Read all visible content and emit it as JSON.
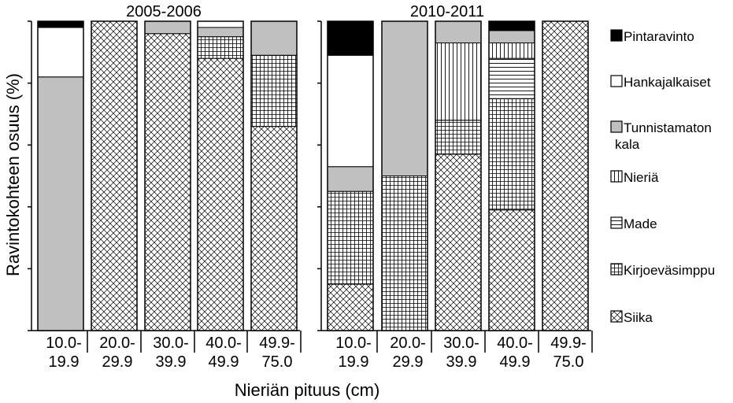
{
  "chart_data": [
    {
      "type": "bar",
      "stacked": true,
      "percent": true,
      "title": "2005-2006",
      "categories": [
        "10.0-\n19.9",
        "20.0-\n29.9",
        "30.0-\n39.9",
        "40.0-\n49.9",
        "49.9-\n75.0"
      ],
      "ylim": [
        0,
        100
      ],
      "series": [
        {
          "name": "Siika",
          "values": [
            0,
            100,
            96,
            88,
            66
          ]
        },
        {
          "name": "Kirjoeväsimppu",
          "values": [
            0,
            0,
            0,
            7,
            23
          ]
        },
        {
          "name": "Made",
          "values": [
            0,
            0,
            0,
            0,
            0
          ]
        },
        {
          "name": "Nieriä",
          "values": [
            0,
            0,
            0,
            0,
            0
          ]
        },
        {
          "name": "Tunnistamaton kala",
          "values": [
            82,
            0,
            4,
            3,
            11
          ]
        },
        {
          "name": "Hankajalkaiset",
          "values": [
            16,
            0,
            0,
            0,
            0
          ]
        },
        {
          "name": "Pintaravinto",
          "values": [
            2,
            0,
            0,
            0,
            0
          ]
        }
      ]
    },
    {
      "type": "bar",
      "stacked": true,
      "percent": true,
      "title": "2010-2011",
      "categories": [
        "10.0-\n19.9",
        "20.0-\n29.9",
        "30.0-\n39.9",
        "40.0-\n49.9",
        "49.9-\n75.0"
      ],
      "ylim": [
        0,
        100
      ],
      "series": [
        {
          "name": "Siika",
          "values": [
            15,
            0,
            57,
            39,
            100
          ]
        },
        {
          "name": "Kirjoeväsimppu",
          "values": [
            30,
            50,
            11,
            36,
            0
          ]
        },
        {
          "name": "Made",
          "values": [
            0,
            0,
            0,
            13,
            0
          ]
        },
        {
          "name": "Nieriä",
          "values": [
            0,
            0,
            25,
            5,
            0
          ]
        },
        {
          "name": "Tunnistamaton kala",
          "values": [
            8,
            50,
            7,
            4,
            0
          ]
        },
        {
          "name": "Hankajalkaiset",
          "values": [
            36,
            0,
            0,
            0,
            0
          ]
        },
        {
          "name": "Pintaravinto",
          "values": [
            11,
            0,
            0,
            3,
            0
          ]
        }
      ]
    }
  ],
  "axes": {
    "ylabel": "Ravintokohteen osuus (%)",
    "xlabel": "Nieriän pituus (cm)"
  },
  "legend": {
    "placement": "right",
    "items": [
      {
        "label": "Pintaravinto",
        "pattern": "solid-black"
      },
      {
        "label": "Hankajalkaiset",
        "pattern": "white"
      },
      {
        "label": "Tunnistamaton\nkala",
        "pattern": "solid-grey"
      },
      {
        "label": "Nieriä",
        "pattern": "vertical-lines"
      },
      {
        "label": "Made",
        "pattern": "horizontal-lines"
      },
      {
        "label": "Kirjoeväsimppu",
        "pattern": "grid"
      },
      {
        "label": "Siika",
        "pattern": "crosshatch"
      }
    ]
  },
  "colors": {
    "grey": "#c0c0c0",
    "black": "#000000",
    "white": "#ffffff"
  }
}
